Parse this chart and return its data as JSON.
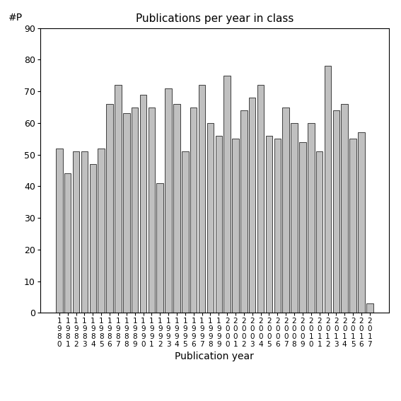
{
  "title": "Publications per year in class",
  "xlabel": "Publication year",
  "ylabel": "#P",
  "bar_color": "#c0c0c0",
  "edge_color": "#000000",
  "years": [
    1980,
    1981,
    1982,
    1983,
    1984,
    1985,
    1986,
    1987,
    1988,
    1989,
    1990,
    1991,
    1992,
    1993,
    1994,
    1995,
    1996,
    1997,
    1998,
    1999,
    2000,
    2001,
    2002,
    2003,
    2004,
    2005,
    2006,
    2007,
    2008,
    2009,
    2010,
    2011,
    2012,
    2013,
    2014,
    2015,
    2016,
    2017
  ],
  "values": [
    52,
    44,
    51,
    51,
    47,
    52,
    66,
    72,
    63,
    65,
    69,
    65,
    41,
    71,
    66,
    51,
    65,
    72,
    60,
    56,
    75,
    55,
    64,
    68,
    72,
    56,
    55,
    65,
    60,
    54,
    60,
    51,
    78,
    64,
    66,
    55,
    57,
    3
  ],
  "ylim": [
    0,
    90
  ],
  "yticks": [
    0,
    10,
    20,
    30,
    40,
    50,
    60,
    70,
    80,
    90
  ],
  "figsize": [
    5.67,
    5.67
  ],
  "dpi": 100
}
